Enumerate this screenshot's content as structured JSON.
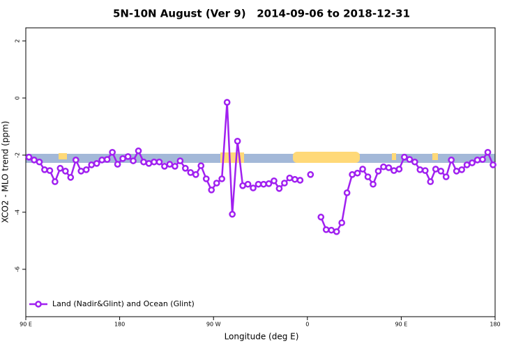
{
  "chart_data": {
    "type": "line",
    "title": "5N-10N August (Ver 9)   2014-09-06 to 2018-12-31",
    "x_label": "Longitude (deg E)",
    "y_label": "XCO2 - MLO trend (ppm)",
    "xlim": [
      90,
      540
    ],
    "xticks": [
      {
        "value": 90,
        "label": "90 E"
      },
      180,
      {
        "value": 270,
        "label": "90 W"
      },
      {
        "value": 360,
        "label": "0"
      },
      {
        "value": 450,
        "label": "90 E"
      },
      {
        "value": 540,
        "label": "180"
      }
    ],
    "ylim": [
      -7.66,
      2.46
    ],
    "yticks": [
      2,
      0,
      -2,
      -4,
      -6
    ],
    "legend": "bottom-left",
    "x": [
      93,
      98,
      103,
      108,
      113,
      118,
      123,
      128,
      133,
      138,
      143,
      148,
      153,
      158,
      163,
      168,
      173,
      178,
      183,
      188,
      193,
      198,
      203,
      208,
      213,
      218,
      223,
      228,
      233,
      238,
      243,
      248,
      253,
      258,
      263,
      268,
      273,
      278,
      283,
      288,
      293,
      298,
      303,
      308,
      313,
      318,
      323,
      328,
      333,
      338,
      343,
      348,
      353,
      358,
      363,
      368,
      373,
      378,
      383,
      388,
      393,
      398,
      403,
      408,
      413,
      418,
      423,
      428,
      433,
      438,
      443,
      448,
      453,
      458,
      463,
      468,
      473,
      478,
      483,
      488,
      493,
      498,
      503,
      508,
      513,
      518,
      523,
      528,
      533,
      538
    ],
    "series": [
      {
        "name": "Land (Nadir&Glint) and Ocean (Glint)",
        "color": "#a020f0",
        "values": [
          -2.07,
          -2.17,
          -2.24,
          -2.51,
          -2.54,
          -2.93,
          -2.46,
          -2.56,
          -2.78,
          -2.17,
          -2.56,
          -2.51,
          -2.34,
          -2.29,
          -2.17,
          -2.15,
          -1.9,
          -2.32,
          -2.12,
          -2.05,
          -2.2,
          -1.85,
          -2.24,
          -2.29,
          -2.24,
          -2.24,
          -2.39,
          -2.32,
          -2.39,
          -2.2,
          -2.46,
          -2.61,
          -2.68,
          -2.37,
          -2.83,
          -3.22,
          -2.98,
          -2.83,
          -0.15,
          -4.07,
          -1.51,
          -3.07,
          -3.02,
          -3.15,
          -3.02,
          -3.02,
          -3.0,
          -2.9,
          -3.17,
          -2.98,
          -2.8,
          -2.85,
          -2.88,
          null,
          -2.68,
          null,
          -4.17,
          -4.61,
          -4.63,
          -4.68,
          -4.37,
          -3.32,
          -2.68,
          -2.63,
          -2.49,
          -2.76,
          -3.02,
          -2.56,
          -2.41,
          -2.44,
          -2.54,
          -2.49,
          -2.07,
          -2.15,
          -2.24,
          -2.51,
          -2.54,
          -2.93,
          -2.49,
          -2.56,
          -2.76,
          -2.17,
          -2.56,
          -2.51,
          -2.34,
          -2.27,
          -2.17,
          -2.15,
          -1.9,
          -2.34
        ]
      }
    ]
  }
}
